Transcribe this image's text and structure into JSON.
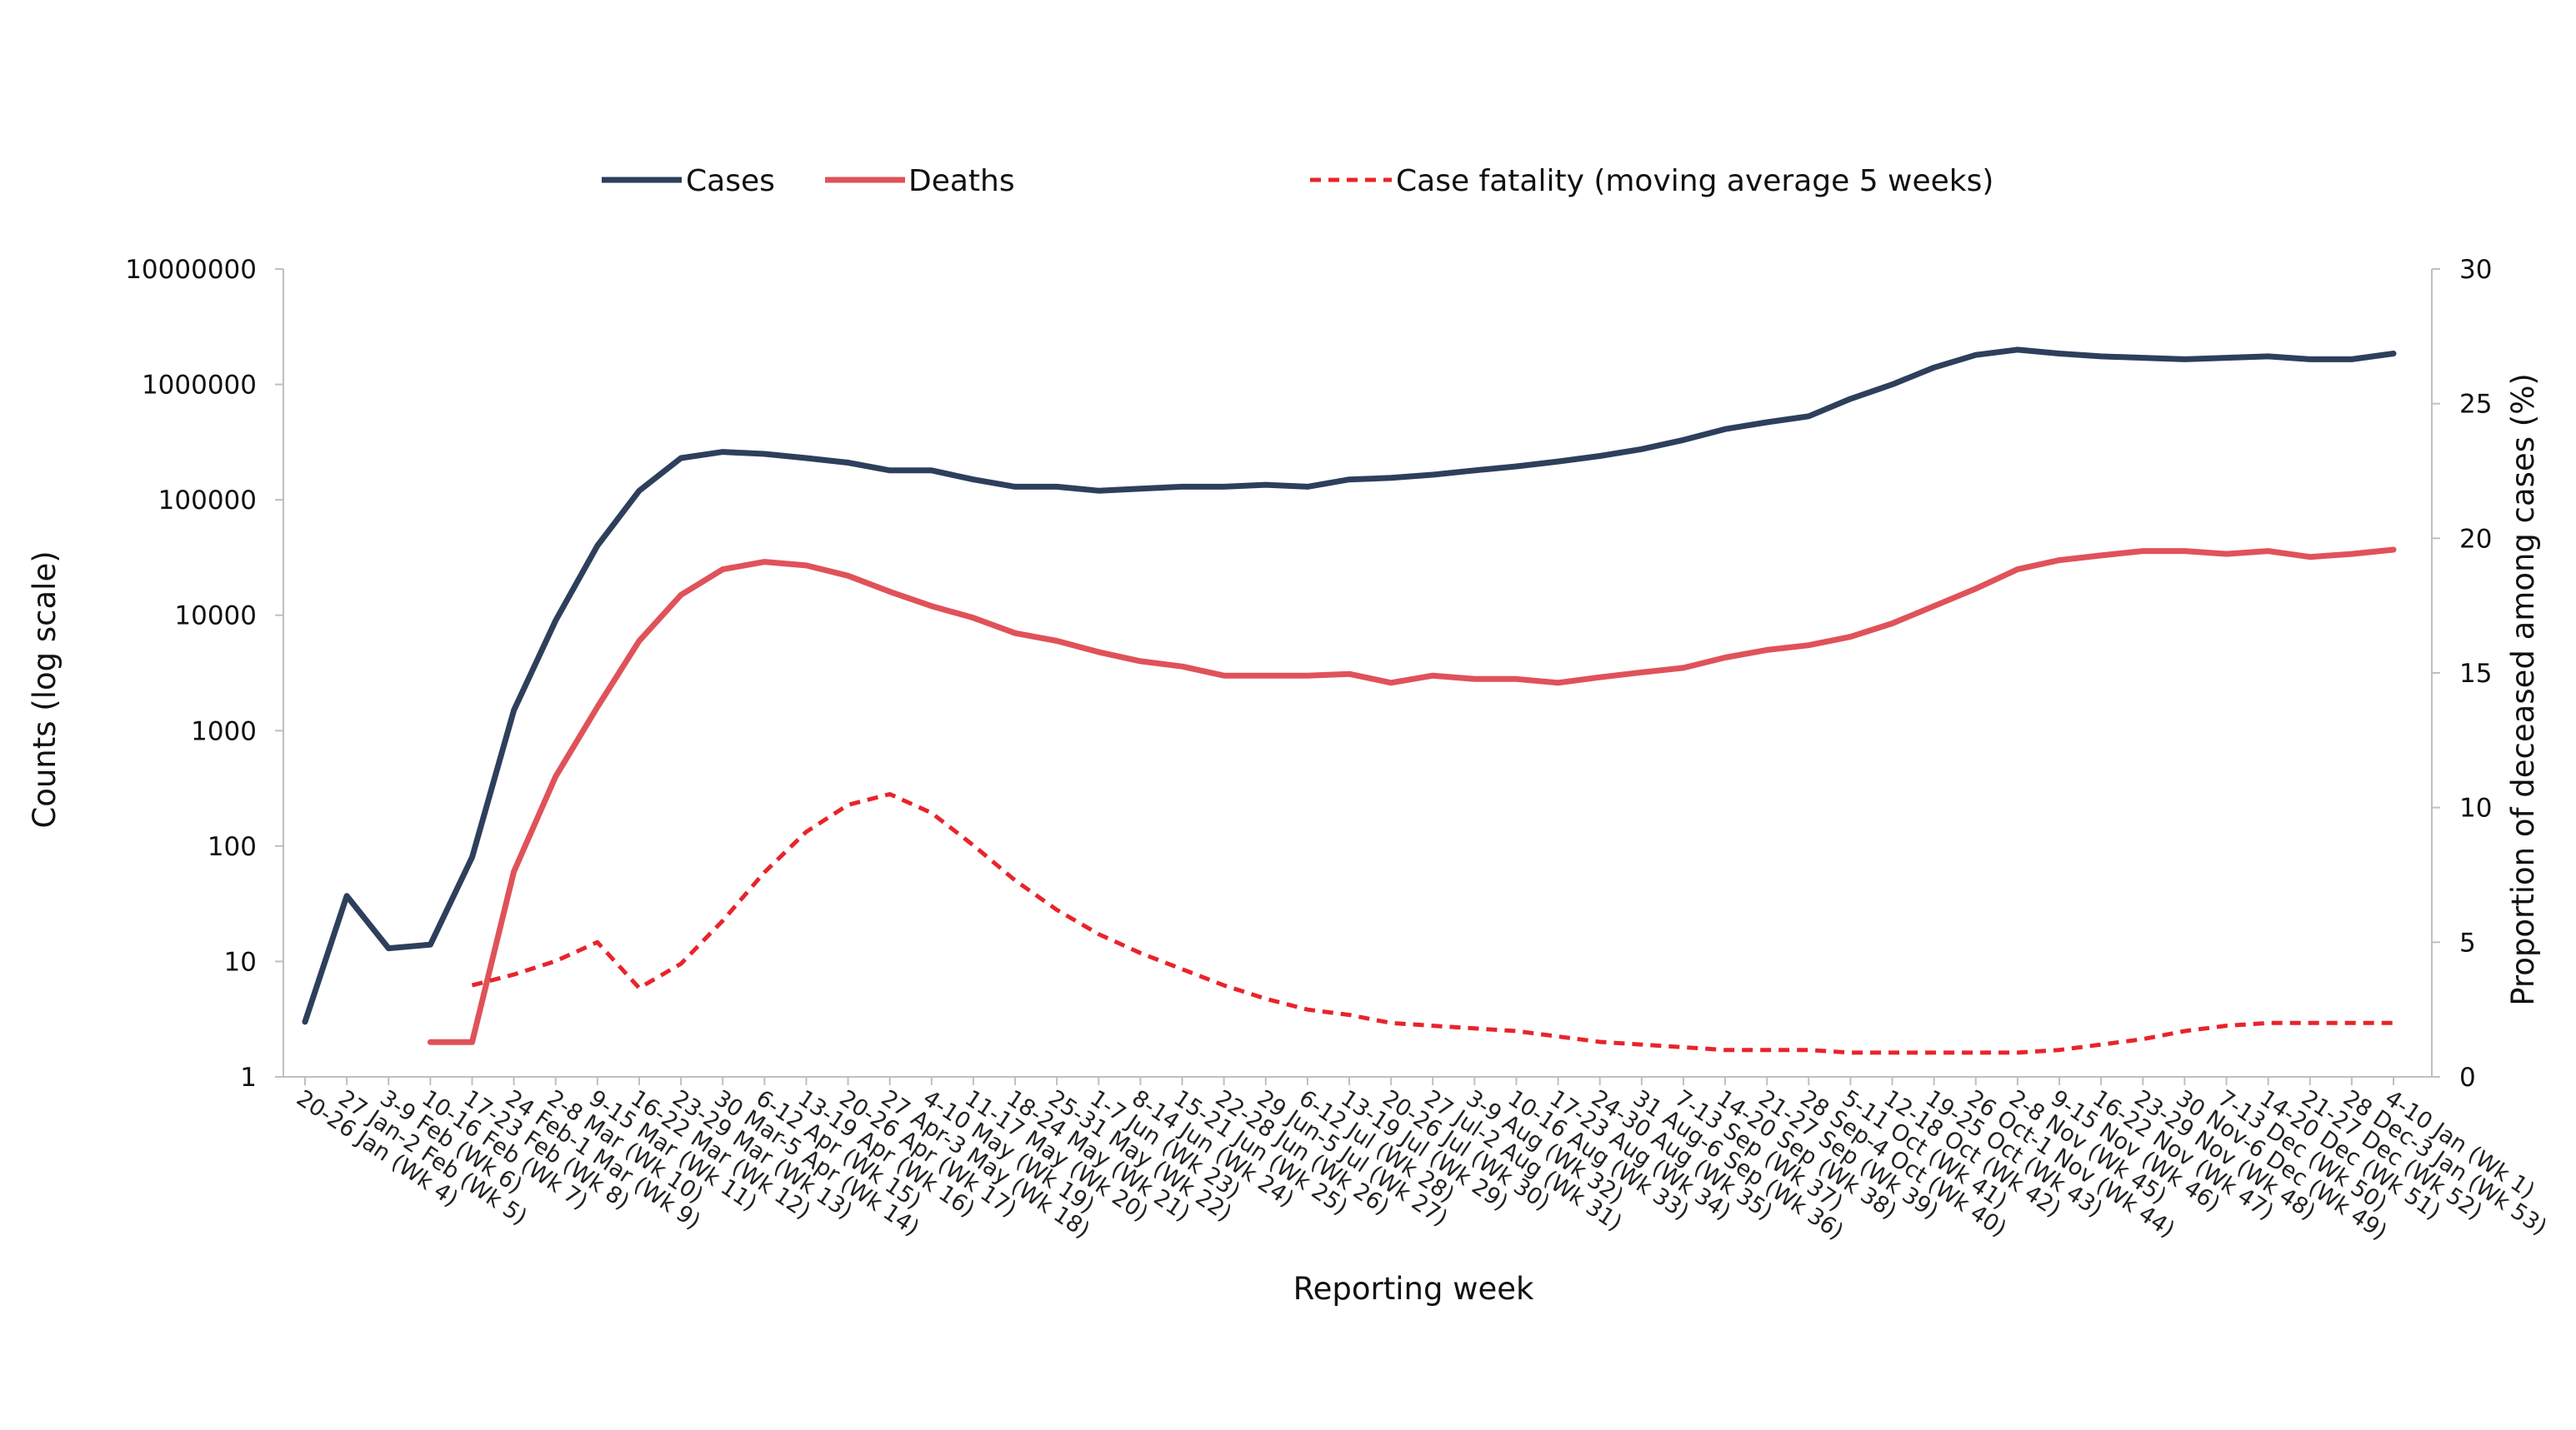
{
  "chart_data": {
    "type": "line",
    "xlabel": "Reporting week",
    "ylabel": "Counts (log scale)",
    "y2label": "Proportion of deceased among cases (%)",
    "yscale": "log",
    "ylim": [
      1,
      10000000
    ],
    "y2lim": [
      0,
      30
    ],
    "yticks": [
      "1",
      "10",
      "100",
      "1000",
      "10000",
      "100000",
      "1000000",
      "10000000"
    ],
    "y2ticks": [
      "0",
      "5",
      "10",
      "15",
      "20",
      "25",
      "30"
    ],
    "grid": false,
    "legend_position": "top",
    "categories": [
      "20-26 Jan (Wk 4)",
      "27 Jan-2 Feb (Wk 5)",
      "3-9 Feb (Wk 6)",
      "10-16 Feb (Wk 7)",
      "17-23 Feb (Wk 8)",
      "24 Feb-1 Mar (Wk 9)",
      "2-8 Mar (Wk 10)",
      "9-15 Mar (Wk 11)",
      "16-22 Mar (Wk 12)",
      "23-29 Mar (Wk 13)",
      "30 Mar-5 Apr (Wk 14)",
      "6-12 Apr (Wk 15)",
      "13-19 Apr (Wk 16)",
      "20-26 Apr (Wk 17)",
      "27 Apr-3 May (Wk 18)",
      "4-10 May (Wk 19)",
      "11-17 May (Wk 20)",
      "18-24 May (Wk 21)",
      "25-31 May (Wk 22)",
      "1-7 Jun (Wk 23)",
      "8-14 Jun (Wk 24)",
      "15-21 Jun (Wk 25)",
      "22-28 Jun (Wk 26)",
      "29 Jun-5 Jul (Wk 27)",
      "6-12 Jul (Wk 28)",
      "13-19 Jul (Wk 29)",
      "20-26 Jul (Wk 30)",
      "27 Jul-2 Aug (Wk 31)",
      "3-9 Aug (Wk 32)",
      "10-16 Aug (Wk 33)",
      "17-23 Aug (Wk 34)",
      "24-30 Aug (Wk 35)",
      "31 Aug-6 Sep (Wk 36)",
      "7-13 Sep (Wk 37)",
      "14-20 Sep (Wk 38)",
      "21-27 Sep (Wk 39)",
      "28 Sep-4 Oct (Wk 40)",
      "5-11 Oct (Wk 41)",
      "12-18 Oct (Wk 42)",
      "19-25 Oct (Wk 43)",
      "26 Oct-1 Nov (Wk 44)",
      "2-8 Nov (Wk 45)",
      "9-15 Nov (Wk 46)",
      "16-22 Nov (Wk 47)",
      "23-29 Nov (Wk 48)",
      "30 Nov-6 Dec (Wk 49)",
      "7-13 Dec (Wk 50)",
      "14-20 Dec (Wk 51)",
      "21-27 Dec (Wk 52)",
      "28 Dec-3 Jan (Wk 53)",
      "4-10 Jan (Wk 1)"
    ],
    "series": [
      {
        "name": "Cases",
        "axis": "left",
        "color": "#2e3f5c",
        "style": "solid",
        "values": [
          3,
          37,
          13,
          14,
          80,
          1500,
          9000,
          40000,
          120000,
          230000,
          260000,
          250000,
          230000,
          210000,
          180000,
          180000,
          150000,
          130000,
          130000,
          120000,
          125000,
          130000,
          130000,
          135000,
          130000,
          150000,
          155000,
          165000,
          180000,
          195000,
          215000,
          240000,
          275000,
          330000,
          410000,
          470000,
          530000,
          750000,
          1000000,
          1400000,
          1800000,
          2000000,
          1850000,
          1750000,
          1700000,
          1650000,
          1700000,
          1750000,
          1650000,
          1650000,
          1850000
        ]
      },
      {
        "name": "Deaths",
        "axis": "left",
        "color": "#e0525a",
        "style": "solid",
        "values": [
          null,
          null,
          null,
          2,
          2,
          60,
          400,
          1600,
          6000,
          15000,
          25000,
          29000,
          27000,
          22000,
          16000,
          12000,
          9500,
          7000,
          6000,
          4800,
          4000,
          3600,
          3000,
          3000,
          3000,
          3100,
          2600,
          3000,
          2800,
          2800,
          2600,
          2900,
          3200,
          3500,
          4300,
          5000,
          5500,
          6500,
          8500,
          12000,
          17000,
          25000,
          30000,
          33000,
          36000,
          36000,
          34000,
          36000,
          32000,
          34000,
          37000
        ]
      },
      {
        "name": "Case fatality (moving average 5 weeks)",
        "axis": "right",
        "color": "#e8242b",
        "style": "dashed",
        "values": [
          null,
          null,
          null,
          null,
          3.4,
          3.8,
          4.3,
          5.0,
          3.3,
          4.2,
          5.8,
          7.6,
          9.1,
          10.1,
          10.5,
          9.8,
          8.6,
          7.3,
          6.2,
          5.3,
          4.6,
          4.0,
          3.4,
          2.9,
          2.5,
          2.3,
          2.0,
          1.9,
          1.8,
          1.7,
          1.5,
          1.3,
          1.2,
          1.1,
          1.0,
          1.0,
          1.0,
          0.9,
          0.9,
          0.9,
          0.9,
          0.9,
          1.0,
          1.2,
          1.4,
          1.7,
          1.9,
          2.0,
          2.0,
          2.0,
          2.0
        ]
      }
    ]
  }
}
